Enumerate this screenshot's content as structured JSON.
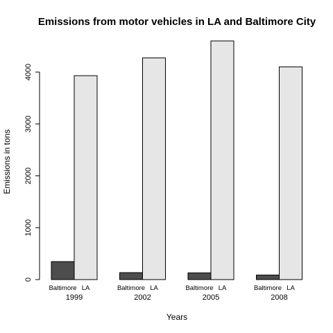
{
  "chart_data": {
    "type": "bar",
    "title": "Emissions from motor vehicles in LA and Baltimore City",
    "xlabel": "Years",
    "ylabel": "Emissions in tons",
    "categories": [
      "1999",
      "2002",
      "2005",
      "2008"
    ],
    "series": [
      {
        "name": "Baltimore",
        "values": [
          347,
          134,
          130,
          88
        ]
      },
      {
        "name": "LA",
        "values": [
          3931,
          4274,
          4601,
          4101
        ]
      }
    ],
    "ylim": [
      0,
      4601
    ],
    "yticks": [
      0,
      1000,
      2000,
      3000,
      4000
    ],
    "grid": false,
    "colors": {
      "Baltimore": "#4d4d4d",
      "LA": "#e6e6e6",
      "border": "#000000"
    }
  }
}
